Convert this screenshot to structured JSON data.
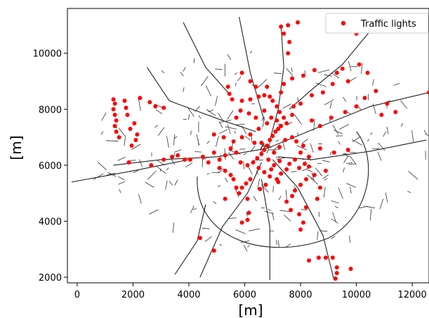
{
  "chart_data": {
    "type": "scatter",
    "title": "",
    "xlabel": "[m]",
    "ylabel": "[m]",
    "xlim": [
      -350,
      12600
    ],
    "ylim": [
      1800,
      11600
    ],
    "x_ticks": [
      0,
      2000,
      4000,
      6000,
      8000,
      10000,
      12000
    ],
    "y_ticks": [
      2000,
      4000,
      6000,
      8000,
      10000
    ],
    "x_tick_labels": [
      "0",
      "2000",
      "4000",
      "6000",
      "8000",
      "10000",
      "12000"
    ],
    "y_tick_labels": [
      "2000",
      "4000",
      "6000",
      "8000",
      "10000"
    ],
    "grid": false,
    "legend": {
      "placement": "top-right",
      "entries": [
        "Traffic lights"
      ]
    },
    "background_layer": "road network (thin black lines)",
    "series": [
      {
        "name": "Traffic lights",
        "color": "#ff0000",
        "marker": "circle",
        "points": [
          [
            1300,
            8350
          ],
          [
            1350,
            8200
          ],
          [
            1300,
            8000
          ],
          [
            1350,
            7800
          ],
          [
            1400,
            7600
          ],
          [
            1350,
            7400
          ],
          [
            1400,
            7200
          ],
          [
            1500,
            7000
          ],
          [
            1700,
            8300
          ],
          [
            1750,
            8050
          ],
          [
            1800,
            7800
          ],
          [
            2050,
            7500
          ],
          [
            1900,
            7300
          ],
          [
            2150,
            7100
          ],
          [
            2100,
            6900
          ],
          [
            1950,
            6700
          ],
          [
            1850,
            6100
          ],
          [
            2250,
            8400
          ],
          [
            2600,
            8250
          ],
          [
            2800,
            8100
          ],
          [
            3100,
            8050
          ],
          [
            2650,
            6000
          ],
          [
            3100,
            6200
          ],
          [
            3400,
            6300
          ],
          [
            3600,
            6350
          ],
          [
            3850,
            6200
          ],
          [
            4050,
            6200
          ],
          [
            4500,
            6300
          ],
          [
            4700,
            6100
          ],
          [
            4900,
            6450
          ],
          [
            5100,
            6200
          ],
          [
            5300,
            6350
          ],
          [
            5500,
            6600
          ],
          [
            5700,
            6450
          ],
          [
            5850,
            6100
          ],
          [
            6100,
            6000
          ],
          [
            6300,
            6100
          ],
          [
            6450,
            6250
          ],
          [
            6600,
            6400
          ],
          [
            6700,
            6550
          ],
          [
            6800,
            6700
          ],
          [
            6900,
            6900
          ],
          [
            7000,
            7050
          ],
          [
            7100,
            7200
          ],
          [
            7200,
            7300
          ],
          [
            7300,
            7400
          ],
          [
            7500,
            7500
          ],
          [
            7400,
            7700
          ],
          [
            7250,
            7900
          ],
          [
            7150,
            8100
          ],
          [
            7000,
            8300
          ],
          [
            6900,
            8450
          ],
          [
            6700,
            8500
          ],
          [
            6500,
            8450
          ],
          [
            6200,
            8350
          ],
          [
            5900,
            8300
          ],
          [
            5550,
            8350
          ],
          [
            5450,
            8550
          ],
          [
            5400,
            8800
          ],
          [
            5900,
            9300
          ],
          [
            6200,
            9000
          ],
          [
            6400,
            8800
          ],
          [
            6800,
            8800
          ],
          [
            7300,
            8600
          ],
          [
            7400,
            8900
          ],
          [
            7700,
            9100
          ],
          [
            8100,
            9200
          ],
          [
            8500,
            9400
          ],
          [
            7550,
            10000
          ],
          [
            7600,
            10400
          ],
          [
            7400,
            10700
          ],
          [
            7300,
            10950
          ],
          [
            7550,
            11000
          ],
          [
            7900,
            11100
          ],
          [
            10000,
            10700
          ],
          [
            9500,
            9450
          ],
          [
            9300,
            9300
          ],
          [
            10100,
            9600
          ],
          [
            10400,
            9300
          ],
          [
            9700,
            9000
          ],
          [
            9150,
            8900
          ],
          [
            8800,
            8600
          ],
          [
            8400,
            8500
          ],
          [
            8000,
            8200
          ],
          [
            7750,
            8100
          ],
          [
            7700,
            7800
          ],
          [
            8400,
            7600
          ],
          [
            8700,
            7400
          ],
          [
            9100,
            7700
          ],
          [
            9600,
            7900
          ],
          [
            10000,
            8100
          ],
          [
            10300,
            8400
          ],
          [
            10700,
            8650
          ],
          [
            11100,
            8200
          ],
          [
            10900,
            7800
          ],
          [
            11400,
            7900
          ],
          [
            12600,
            8600
          ],
          [
            9200,
            6450
          ],
          [
            9700,
            6550
          ],
          [
            8700,
            6600
          ],
          [
            8100,
            6700
          ],
          [
            8300,
            6300
          ],
          [
            7800,
            6200
          ],
          [
            7600,
            6050
          ],
          [
            7500,
            5850
          ],
          [
            7300,
            5700
          ],
          [
            7150,
            5500
          ],
          [
            6900,
            5600
          ],
          [
            6700,
            5750
          ],
          [
            6500,
            5900
          ],
          [
            6200,
            5500
          ],
          [
            6050,
            5350
          ],
          [
            5900,
            5200
          ],
          [
            5800,
            5000
          ],
          [
            5700,
            5200
          ],
          [
            5600,
            5500
          ],
          [
            5500,
            5650
          ],
          [
            5300,
            5800
          ],
          [
            5100,
            5900
          ],
          [
            6100,
            4800
          ],
          [
            6150,
            4300
          ],
          [
            6100,
            4050
          ],
          [
            5900,
            3950
          ],
          [
            5300,
            4800
          ],
          [
            4400,
            3400
          ],
          [
            4900,
            2950
          ],
          [
            8000,
            5300
          ],
          [
            7800,
            5100
          ],
          [
            7700,
            4900
          ],
          [
            7500,
            4700
          ],
          [
            7650,
            4400
          ],
          [
            7950,
            4250
          ],
          [
            8200,
            5500
          ],
          [
            8500,
            5650
          ],
          [
            8900,
            5800
          ],
          [
            8700,
            5200
          ],
          [
            8600,
            4800
          ],
          [
            8200,
            4500
          ],
          [
            8100,
            3950
          ],
          [
            8000,
            3700
          ],
          [
            9150,
            2700
          ],
          [
            8900,
            2700
          ],
          [
            8650,
            2700
          ],
          [
            8300,
            2600
          ],
          [
            9300,
            2350
          ],
          [
            9300,
            2150
          ],
          [
            9250,
            1950
          ],
          [
            9800,
            2300
          ],
          [
            6800,
            7500
          ],
          [
            6500,
            7300
          ],
          [
            6200,
            7100
          ],
          [
            5900,
            7000
          ],
          [
            5600,
            6850
          ],
          [
            5250,
            7000
          ],
          [
            4900,
            7100
          ],
          [
            6350,
            6800
          ],
          [
            6600,
            6800
          ],
          [
            7050,
            6450
          ],
          [
            7250,
            6650
          ],
          [
            7450,
            6900
          ],
          [
            7700,
            7000
          ],
          [
            7850,
            6850
          ],
          [
            8000,
            6450
          ],
          [
            6700,
            7950
          ],
          [
            6950,
            7700
          ],
          [
            7150,
            7600
          ],
          [
            6400,
            7700
          ],
          [
            6150,
            7850
          ],
          [
            5850,
            7950
          ],
          [
            5700,
            7700
          ],
          [
            6850,
            6200
          ],
          [
            7050,
            6000
          ],
          [
            7250,
            6150
          ],
          [
            6950,
            5850
          ],
          [
            6750,
            5300
          ],
          [
            6550,
            5150
          ],
          [
            7200,
            5400
          ],
          [
            7950,
            5900
          ],
          [
            8150,
            6050
          ],
          [
            8300,
            5950
          ]
        ]
      }
    ]
  }
}
